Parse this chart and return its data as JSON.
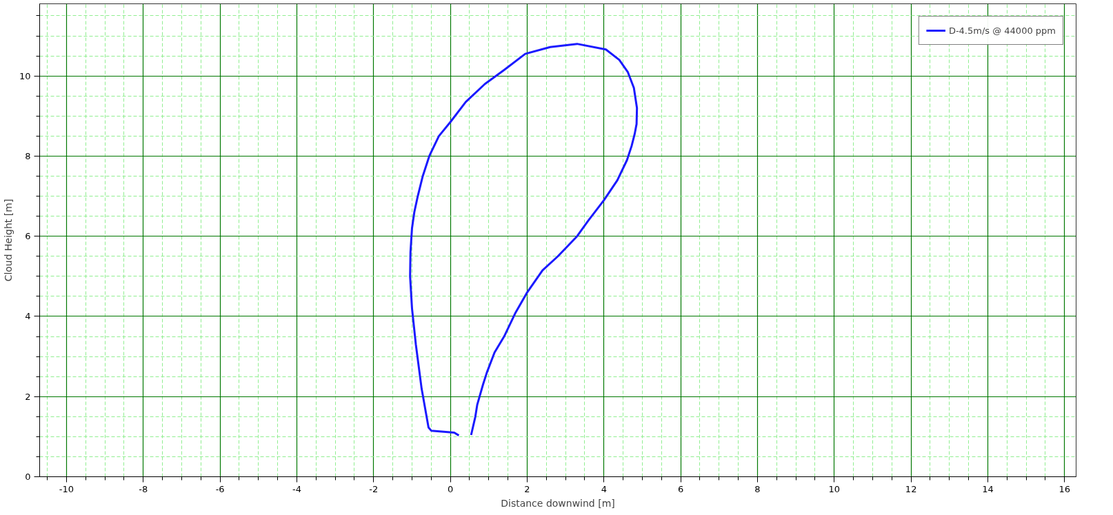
{
  "chart_data": {
    "type": "line",
    "xlabel": "Distance downwind [m]",
    "ylabel": "Cloud Height [m]",
    "xlim": [
      -10.7,
      16.3
    ],
    "ylim": [
      0,
      11.8
    ],
    "xticks": [
      {
        "value": -10.5,
        "label": null
      },
      -10,
      {
        "value": -9.5,
        "label": null
      },
      {
        "value": -9,
        "label": null
      },
      {
        "value": -8.5,
        "label": null
      },
      -8,
      {
        "value": -7.5,
        "label": null
      },
      {
        "value": -7,
        "label": null
      },
      {
        "value": -6.5,
        "label": null
      },
      -6,
      {
        "value": -5.5,
        "label": null
      },
      {
        "value": -5,
        "label": null
      },
      {
        "value": -4.5,
        "label": null
      },
      -4,
      {
        "value": -3.5,
        "label": null
      },
      {
        "value": -3,
        "label": null
      },
      {
        "value": -2.5,
        "label": null
      },
      -2,
      {
        "value": -1.5,
        "label": null
      },
      {
        "value": -1,
        "label": null
      },
      {
        "value": -0.5,
        "label": null
      },
      0,
      {
        "value": 0.5,
        "label": null
      },
      {
        "value": 1,
        "label": null
      },
      {
        "value": 1.5,
        "label": null
      },
      2,
      {
        "value": 2.5,
        "label": null
      },
      {
        "value": 3,
        "label": null
      },
      {
        "value": 3.5,
        "label": null
      },
      4,
      {
        "value": 4.5,
        "label": null
      },
      {
        "value": 5,
        "label": null
      },
      {
        "value": 5.5,
        "label": null
      },
      6,
      {
        "value": 6.5,
        "label": null
      },
      {
        "value": 7,
        "label": null
      },
      {
        "value": 7.5,
        "label": null
      },
      8,
      {
        "value": 8.5,
        "label": null
      },
      {
        "value": 9,
        "label": null
      },
      {
        "value": 9.5,
        "label": null
      },
      10,
      {
        "value": 10.5,
        "label": null
      },
      {
        "value": 11,
        "label": null
      },
      {
        "value": 11.5,
        "label": null
      },
      12,
      {
        "value": 12.5,
        "label": null
      },
      {
        "value": 13,
        "label": null
      },
      {
        "value": 13.5,
        "label": null
      },
      14,
      {
        "value": 14.5,
        "label": null
      },
      {
        "value": 15,
        "label": null
      },
      {
        "value": 15.5,
        "label": null
      },
      16
    ],
    "yticks": [
      0,
      {
        "value": 0.5,
        "label": null
      },
      {
        "value": 1,
        "label": null
      },
      {
        "value": 1.5,
        "label": null
      },
      2,
      {
        "value": 2.5,
        "label": null
      },
      {
        "value": 3,
        "label": null
      },
      {
        "value": 3.5,
        "label": null
      },
      4,
      {
        "value": 4.5,
        "label": null
      },
      {
        "value": 5,
        "label": null
      },
      {
        "value": 5.5,
        "label": null
      },
      6,
      {
        "value": 6.5,
        "label": null
      },
      {
        "value": 7,
        "label": null
      },
      {
        "value": 7.5,
        "label": null
      },
      8,
      {
        "value": 8.5,
        "label": null
      },
      {
        "value": 9,
        "label": null
      },
      {
        "value": 9.5,
        "label": null
      },
      10,
      {
        "value": 10.5,
        "label": null
      },
      {
        "value": 11,
        "label": null
      },
      {
        "value": 11.5,
        "label": null
      }
    ],
    "grid": true,
    "legend": "top right",
    "marker": "none",
    "line_style": "solid",
    "series": [
      {
        "name": "D-4.5m/s @ 44000 ppm",
        "color": "#1a1aff",
        "x": [
          0.22,
          0.1,
          -0.5,
          -0.57,
          -0.75,
          -0.9,
          -1.0,
          -1.05,
          -1.04,
          -1.0,
          -0.94,
          -0.85,
          -0.72,
          -0.55,
          -0.3,
          0,
          0.4,
          0.9,
          1.4,
          1.95,
          2.6,
          3.3,
          4.05,
          4.4,
          4.62,
          4.78,
          4.86,
          4.85,
          4.8,
          4.72,
          4.6,
          4.35,
          4.0,
          3.6,
          3.3,
          2.8,
          2.4,
          2.0,
          1.7,
          1.4,
          1.15,
          0.95,
          0.85,
          0.7,
          0.65,
          0.54
        ],
        "values": [
          1.03,
          1.1,
          1.15,
          1.23,
          2.2,
          3.3,
          4.2,
          5.0,
          5.6,
          6.2,
          6.6,
          7.0,
          7.5,
          8.0,
          8.5,
          8.85,
          9.35,
          9.8,
          10.15,
          10.55,
          10.72,
          10.8,
          10.66,
          10.4,
          10.1,
          9.7,
          9.2,
          8.8,
          8.55,
          8.25,
          7.9,
          7.4,
          6.9,
          6.4,
          6.0,
          5.5,
          5.15,
          4.6,
          4.1,
          3.5,
          3.1,
          2.6,
          2.3,
          1.8,
          1.5,
          1.04
        ]
      }
    ]
  }
}
